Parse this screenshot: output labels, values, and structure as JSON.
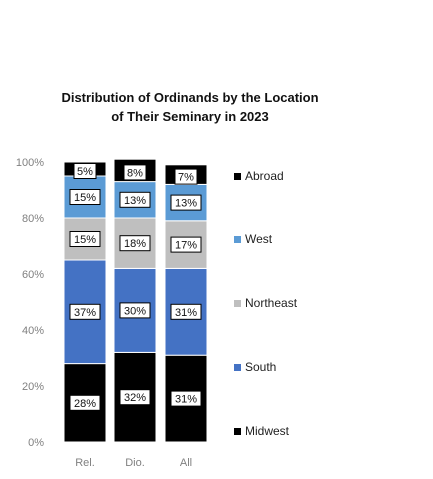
{
  "chart_data": {
    "type": "bar",
    "stacked": true,
    "title_lines": [
      "Distribution of Ordinands by the Location",
      "of Their Seminary in 2023"
    ],
    "categories": [
      "Rel.",
      "Dio.",
      "All"
    ],
    "ylim": [
      0,
      100
    ],
    "yticks": [
      "0%",
      "20%",
      "40%",
      "60%",
      "80%",
      "100%"
    ],
    "legend_position": "right",
    "series": [
      {
        "name": "Midwest",
        "color": "#000000",
        "values": [
          28,
          32,
          31
        ],
        "labels": [
          "28%",
          "32%",
          "31%"
        ]
      },
      {
        "name": "South",
        "color": "#4472C4",
        "values": [
          37,
          30,
          31
        ],
        "labels": [
          "37%",
          "30%",
          "31%"
        ]
      },
      {
        "name": "Northeast",
        "color": "#BFBFBF",
        "values": [
          15,
          18,
          17
        ],
        "labels": [
          "15%",
          "18%",
          "17%"
        ]
      },
      {
        "name": "West",
        "color": "#5B9BD5",
        "values": [
          15,
          13,
          13
        ],
        "labels": [
          "15%",
          "13%",
          "13%"
        ]
      },
      {
        "name": "Abroad",
        "color": "#000000",
        "values": [
          5,
          8,
          7
        ],
        "labels": [
          "5%",
          "8%",
          "7%"
        ]
      }
    ]
  }
}
